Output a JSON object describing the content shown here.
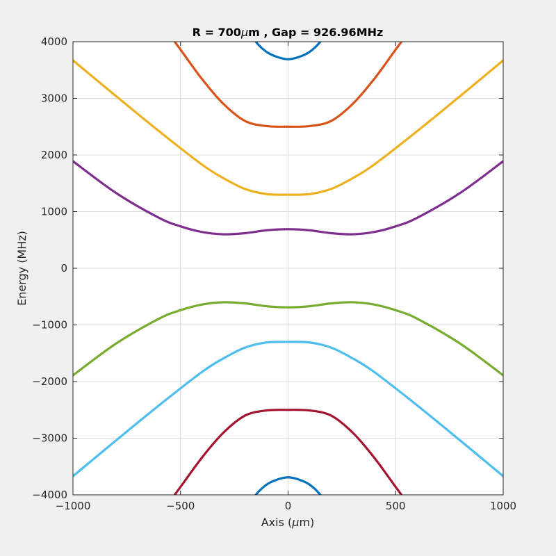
{
  "chart_data": {
    "type": "line",
    "title_prefix": "R = 700",
    "title_mu": "μ",
    "title_suffix": "m , Gap = 926.96MHz",
    "xlabel_prefix": "Axis (",
    "xlabel_mu": "μ",
    "xlabel_suffix": "m)",
    "ylabel": "Energy (MHz)",
    "xlim": [
      -1000,
      1000
    ],
    "ylim": [
      -4000,
      4000
    ],
    "xticks": [
      -1000,
      -500,
      0,
      500,
      1000
    ],
    "yticks": [
      -4000,
      -3000,
      -2000,
      -1000,
      0,
      1000,
      2000,
      3000,
      4000
    ],
    "xtick_labels": [
      "−1000",
      "−500",
      "0",
      "500",
      "1000"
    ],
    "ytick_labels": [
      "−4000",
      "−3000",
      "−2000",
      "−1000",
      "0",
      "1000",
      "2000",
      "3000",
      "4000"
    ],
    "grid": true,
    "series": [
      {
        "color": "#0072BD",
        "x": [
          -250,
          -200,
          -150,
          -100,
          -50,
          0,
          50,
          100,
          150,
          200,
          250
        ],
        "y": [
          4650,
          4290,
          4000,
          3820,
          3730,
          3690,
          3730,
          3820,
          4000,
          4290,
          4650
        ]
      },
      {
        "color": "#D95319",
        "x": [
          -700,
          -600,
          -500,
          -400,
          -300,
          -200,
          -100,
          0,
          100,
          200,
          300,
          400,
          500,
          600,
          700
        ],
        "y": [
          4950,
          4380,
          3860,
          3340,
          2900,
          2600,
          2510,
          2500,
          2510,
          2600,
          2900,
          3340,
          3860,
          4380,
          4950
        ]
      },
      {
        "color": "#EDB120",
        "x": [
          -1000,
          -800,
          -600,
          -400,
          -300,
          -200,
          -100,
          0,
          100,
          200,
          300,
          400,
          600,
          800,
          1000
        ],
        "y": [
          3670,
          3040,
          2420,
          1830,
          1590,
          1400,
          1310,
          1300,
          1310,
          1400,
          1590,
          1830,
          2420,
          3040,
          3670
        ]
      },
      {
        "color": "#7E2F8E",
        "x": [
          -1000,
          -800,
          -600,
          -500,
          -400,
          -300,
          -200,
          -100,
          0,
          100,
          200,
          300,
          400,
          500,
          600,
          800,
          1000
        ],
        "y": [
          1890,
          1330,
          890,
          740,
          640,
          600,
          620,
          670,
          690,
          670,
          620,
          600,
          640,
          740,
          890,
          1330,
          1890
        ]
      },
      {
        "color": "#77AC30",
        "x": [
          -1000,
          -800,
          -600,
          -500,
          -400,
          -300,
          -200,
          -100,
          0,
          100,
          200,
          300,
          400,
          500,
          600,
          800,
          1000
        ],
        "y": [
          -1890,
          -1330,
          -890,
          -740,
          -640,
          -600,
          -620,
          -670,
          -690,
          -670,
          -620,
          -600,
          -640,
          -740,
          -890,
          -1330,
          -1890
        ]
      },
      {
        "color": "#4DBEEE",
        "x": [
          -1000,
          -800,
          -600,
          -400,
          -300,
          -200,
          -100,
          0,
          100,
          200,
          300,
          400,
          600,
          800,
          1000
        ],
        "y": [
          -3670,
          -3040,
          -2420,
          -1830,
          -1590,
          -1400,
          -1310,
          -1300,
          -1310,
          -1400,
          -1590,
          -1830,
          -2420,
          -3040,
          -3670
        ]
      },
      {
        "color": "#A2142F",
        "x": [
          -700,
          -600,
          -500,
          -400,
          -300,
          -200,
          -100,
          0,
          100,
          200,
          300,
          400,
          500,
          600,
          700
        ],
        "y": [
          -4950,
          -4380,
          -3860,
          -3340,
          -2900,
          -2600,
          -2510,
          -2500,
          -2510,
          -2600,
          -2900,
          -3340,
          -3860,
          -4380,
          -4950
        ]
      },
      {
        "color": "#0072BD",
        "x": [
          -250,
          -200,
          -150,
          -100,
          -50,
          0,
          50,
          100,
          150,
          200,
          250
        ],
        "y": [
          -4650,
          -4290,
          -4000,
          -3820,
          -3730,
          -3690,
          -3730,
          -3820,
          -4000,
          -4290,
          -4650
        ]
      }
    ]
  }
}
